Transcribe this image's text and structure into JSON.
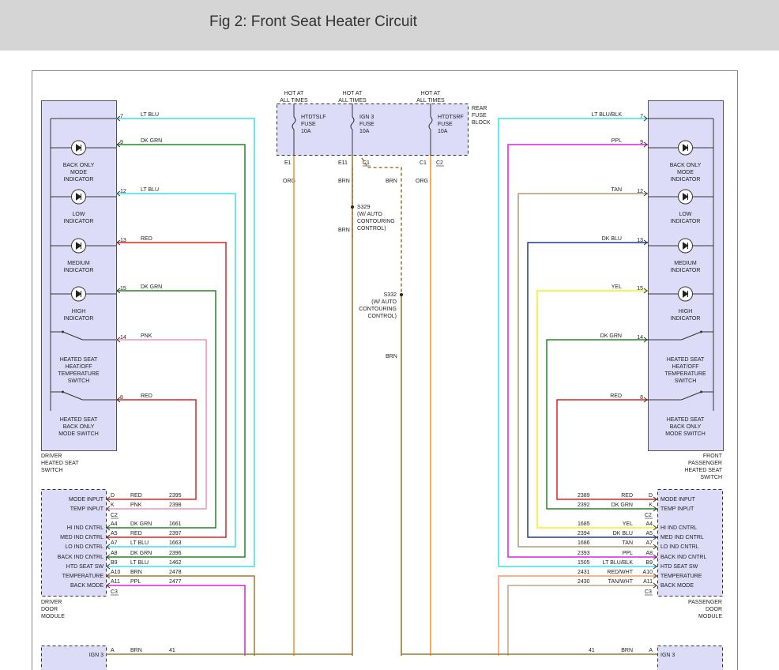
{
  "header": {
    "title": "Fig 2: Front Seat Heater Circuit"
  },
  "fuse_block": {
    "hot_labels": [
      [
        "HOT AT",
        "ALL TIMES"
      ],
      [
        "HOT AT",
        "ALL TIMES"
      ],
      [
        "HOT AT",
        "ALL TIMES"
      ]
    ],
    "fuses": [
      [
        "HTDTSLF",
        "FUSE",
        "10A"
      ],
      [
        "IGN 3",
        "FUSE",
        "10A"
      ],
      [
        "HTDTSRF",
        "FUSE",
        "10A"
      ]
    ],
    "label": [
      "REAR",
      "FUSE",
      "BLOCK"
    ],
    "pins": [
      "E1",
      "E11",
      "C1",
      "C1",
      "C2"
    ],
    "wire_labels": [
      "ORG",
      "BRN",
      "BRN",
      "ORG",
      "BRN",
      "BRN"
    ]
  },
  "splices": [
    [
      "S329",
      "(W/ AUTO",
      "CONTOURING",
      "CONTROL)"
    ],
    [
      "S332",
      "(W/ AUTO",
      "CONTOURING",
      "CONTROL)"
    ]
  ],
  "left_switch": {
    "name": [
      "DRIVER",
      "HEATED SEAT",
      "SWITCH"
    ],
    "indicators": [
      [
        "BACK ONLY",
        "MODE",
        "INDICATOR"
      ],
      [
        "LOW",
        "INDICATOR"
      ],
      [
        "MEDIUM",
        "INDICATOR"
      ],
      [
        "HIGH",
        "INDICATOR"
      ]
    ],
    "switches": [
      [
        "HEATED SEAT",
        "HEAT/OFF",
        "TEMPERATURE",
        "SWITCH"
      ],
      [
        "HEATED SEAT",
        "BACK ONLY",
        "MODE SWITCH"
      ]
    ],
    "wires": [
      {
        "pin": "7",
        "color": "LT BLU",
        "stroke": "#3ee0ea"
      },
      {
        "pin": "9",
        "color": "DK GRN",
        "stroke": "#1e8c1e"
      },
      {
        "pin": "12",
        "color": "LT BLU",
        "stroke": "#3ee0ea"
      },
      {
        "pin": "13",
        "color": "RED",
        "stroke": "#e02424"
      },
      {
        "pin": "15",
        "color": "DK GRN",
        "stroke": "#1e8c1e"
      },
      {
        "pin": "14",
        "color": "PNK",
        "stroke": "#f294b4"
      },
      {
        "pin": "8",
        "color": "RED",
        "stroke": "#e02424"
      }
    ]
  },
  "right_switch": {
    "name": [
      "FRONT",
      "PASSENGER",
      "HEATED SEAT",
      "SWITCH"
    ],
    "indicators": [
      [
        "BACK ONLY",
        "MODE",
        "INDICATOR"
      ],
      [
        "LOW",
        "INDICATOR"
      ],
      [
        "MEDIUM",
        "INDICATOR"
      ],
      [
        "HIGH",
        "INDICATOR"
      ]
    ],
    "switches": [
      [
        "HEATED SEAT",
        "HEAT/OFF",
        "TEMPERATURE",
        "SWITCH"
      ],
      [
        "HEATED SEAT",
        "BACK ONLY",
        "MODE SWITCH"
      ]
    ],
    "wires": [
      {
        "pin": "7",
        "color": "LT BLU/BLK",
        "stroke": "#3ee0ea"
      },
      {
        "pin": "9",
        "color": "PPL",
        "stroke": "#e020e0"
      },
      {
        "pin": "12",
        "color": "TAN",
        "stroke": "#b09a72"
      },
      {
        "pin": "13",
        "color": "DK BLU",
        "stroke": "#1c3a9c"
      },
      {
        "pin": "15",
        "color": "YEL",
        "stroke": "#f0f020"
      },
      {
        "pin": "14",
        "color": "DK GRN",
        "stroke": "#1e8c1e"
      },
      {
        "pin": "8",
        "color": "RED",
        "stroke": "#e02424"
      }
    ]
  },
  "left_module": {
    "name": [
      "DRIVER",
      "DOOR",
      "MODULE"
    ],
    "connectors": [
      "C2",
      "C3"
    ],
    "rows": [
      {
        "label": "MODE INPUT",
        "pin": "D",
        "color": "RED",
        "circuit": "2395"
      },
      {
        "label": "TEMP INPUT",
        "pin": "K",
        "color": "PNK",
        "circuit": "2398"
      },
      {
        "label": "HI IND CNTRL",
        "pin": "A4",
        "color": "DK GRN",
        "circuit": "1661"
      },
      {
        "label": "MED IND CNTRL",
        "pin": "A5",
        "color": "RED",
        "circuit": "2397"
      },
      {
        "label": "LO IND CNTRL",
        "pin": "A7",
        "color": "LT BLU",
        "circuit": "1663"
      },
      {
        "label": "BACK IND CNTRL",
        "pin": "A8",
        "color": "DK GRN",
        "circuit": "2396"
      },
      {
        "label": "HTD SEAT SW",
        "pin": "B9",
        "color": "LT BLU",
        "circuit": "1462"
      },
      {
        "label": "TEMPERATURE",
        "pin": "A10",
        "color": "BRN",
        "circuit": "2478",
        "stroke": "#a07a2c"
      },
      {
        "label": "BACK MODE",
        "pin": "A11",
        "color": "PPL",
        "circuit": "2477",
        "stroke": "#e020e0"
      }
    ]
  },
  "right_module": {
    "name": [
      "PASSENGER",
      "DOOR",
      "MODULE"
    ],
    "connectors": [
      "C2",
      "C3"
    ],
    "rows": [
      {
        "label": "MODE INPUT",
        "pin": "D",
        "color": "RED",
        "circuit": "2389"
      },
      {
        "label": "TEMP INPUT",
        "pin": "K",
        "color": "DK GRN",
        "circuit": "2392"
      },
      {
        "label": "HI IND CNTRL",
        "pin": "A4",
        "color": "YEL",
        "circuit": "1685"
      },
      {
        "label": "MED IND CNTRL",
        "pin": "A5",
        "color": "DK BLU",
        "circuit": "2394"
      },
      {
        "label": "LO IND CNTRL",
        "pin": "A7",
        "color": "TAN",
        "circuit": "1686"
      },
      {
        "label": "BACK IND CNTRL",
        "pin": "A8",
        "color": "PPL",
        "circuit": "2393"
      },
      {
        "label": "HTD SEAT SW",
        "pin": "B9",
        "color": "LT BLU/BLK",
        "circuit": "1505"
      },
      {
        "label": "TEMPERATURE",
        "pin": "A10",
        "color": "RED/WHT",
        "circuit": "2431",
        "stroke": "#f29a6a"
      },
      {
        "label": "BACK MODE",
        "pin": "A11",
        "color": "TAN/WHT",
        "circuit": "2430",
        "stroke": "#b8a888"
      }
    ]
  },
  "bottom": {
    "left": {
      "pin": "A",
      "color": "BRN",
      "circuit": "41",
      "label": "IGN 3"
    },
    "right": {
      "pin": "A",
      "color": "BRN",
      "circuit": "41",
      "label": "IGN 3"
    }
  }
}
